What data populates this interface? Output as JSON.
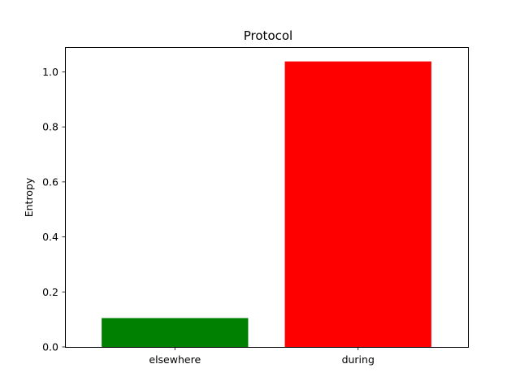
{
  "chart_data": {
    "type": "bar",
    "title": "Protocol",
    "xlabel": "",
    "ylabel": "Entropy",
    "categories": [
      "elsewhere",
      "during"
    ],
    "values": [
      0.105,
      1.038
    ],
    "colors": [
      "#008000",
      "#ff0000"
    ],
    "ylim": [
      0,
      1.09
    ],
    "yticks": [
      0.0,
      0.2,
      0.4,
      0.6,
      0.8,
      1.0
    ],
    "ytick_labels": [
      "0.0",
      "0.2",
      "0.4",
      "0.6",
      "0.8",
      "1.0"
    ],
    "grid": false,
    "legend": "none"
  }
}
